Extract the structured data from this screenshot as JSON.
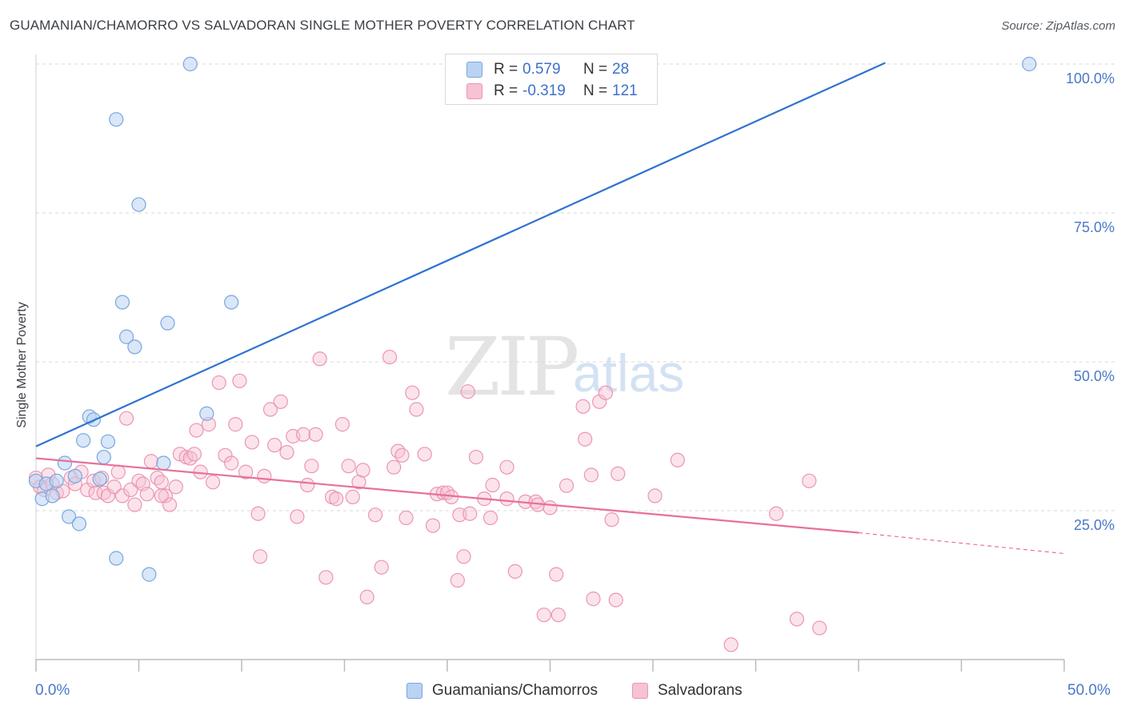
{
  "header": {
    "title": "GUAMANIAN/CHAMORRO VS SALVADORAN SINGLE MOTHER POVERTY CORRELATION CHART",
    "source": "Source: ZipAtlas.com"
  },
  "watermark": {
    "zip": "ZIP",
    "atlas": "atlas"
  },
  "legend": {
    "rows": [
      {
        "r_label": "R =",
        "r_value": "0.579",
        "n_label": "N =",
        "n_value": "28"
      },
      {
        "r_label": "R =",
        "r_value": "-0.319",
        "n_label": "N =",
        "n_value": "121"
      }
    ]
  },
  "bottom_legend": {
    "series1": "Guamanians/Chamorros",
    "series2": "Salvadorans"
  },
  "colors": {
    "blue_fill": "#b9d3f3",
    "blue_stroke": "#7aa6de",
    "blue_line": "#2f72d0",
    "pink_fill": "#f7c2d3",
    "pink_stroke": "#ec95b2",
    "pink_line": "#e8709a",
    "grid": "#d8d8d8"
  },
  "chart_data": {
    "type": "scatter",
    "title": "GUAMANIAN/CHAMORRO VS SALVADORAN SINGLE MOTHER POVERTY CORRELATION CHART",
    "xlabel": "",
    "ylabel": "Single Mother Poverty",
    "xlim": [
      0,
      50
    ],
    "ylim": [
      0,
      102
    ],
    "x_tick_labels": [
      "0.0%",
      "50.0%"
    ],
    "y_tick_labels": [
      "25.0%",
      "50.0%",
      "75.0%",
      "100.0%"
    ],
    "y_ticks": [
      25,
      50,
      75,
      100
    ],
    "grid": true,
    "legend_placement": "top-center",
    "series": [
      {
        "name": "Guamanians/Chamorros",
        "color": "blue",
        "r": 0.579,
        "n": 28,
        "trend": {
          "x0": 0,
          "y0": 35.8,
          "x1": 41.3,
          "y1": 100.2
        },
        "points": [
          [
            0.0,
            30.0
          ],
          [
            0.3,
            27.0
          ],
          [
            0.5,
            29.5
          ],
          [
            0.8,
            27.5
          ],
          [
            1.0,
            30.0
          ],
          [
            1.4,
            33.0
          ],
          [
            1.6,
            24.0
          ],
          [
            1.9,
            30.8
          ],
          [
            2.1,
            22.8
          ],
          [
            2.3,
            36.8
          ],
          [
            2.6,
            40.8
          ],
          [
            2.8,
            40.3
          ],
          [
            3.1,
            30.3
          ],
          [
            3.3,
            34.0
          ],
          [
            3.5,
            36.6
          ],
          [
            3.9,
            17.0
          ],
          [
            3.9,
            90.7
          ],
          [
            4.2,
            60.0
          ],
          [
            4.4,
            54.2
          ],
          [
            4.8,
            52.5
          ],
          [
            5.0,
            76.4
          ],
          [
            5.5,
            14.3
          ],
          [
            6.2,
            33.0
          ],
          [
            6.4,
            56.5
          ],
          [
            7.5,
            100.0
          ],
          [
            8.3,
            41.3
          ],
          [
            9.5,
            60.0
          ],
          [
            48.3,
            100.0
          ]
        ]
      },
      {
        "name": "Salvadorans",
        "color": "pink",
        "r": -0.319,
        "n": 121,
        "trend": {
          "x0": 0,
          "y0": 33.8,
          "x1": 40.0,
          "y1": 21.3,
          "dash_x1": 50.0,
          "dash_y1": 17.8
        },
        "points": [
          [
            0.0,
            30.5
          ],
          [
            0.2,
            29.0
          ],
          [
            0.4,
            28.5
          ],
          [
            0.6,
            31.0
          ],
          [
            0.8,
            29.5
          ],
          [
            1.0,
            28.0
          ],
          [
            1.3,
            28.3
          ],
          [
            1.7,
            30.5
          ],
          [
            1.9,
            29.5
          ],
          [
            2.2,
            31.5
          ],
          [
            2.5,
            28.5
          ],
          [
            2.8,
            30.0
          ],
          [
            2.9,
            28.0
          ],
          [
            3.2,
            30.5
          ],
          [
            3.3,
            28.0
          ],
          [
            3.5,
            27.5
          ],
          [
            3.8,
            29.0
          ],
          [
            4.0,
            31.5
          ],
          [
            4.2,
            27.5
          ],
          [
            4.4,
            40.5
          ],
          [
            4.6,
            28.5
          ],
          [
            4.8,
            26.0
          ],
          [
            5.0,
            30.0
          ],
          [
            5.2,
            29.5
          ],
          [
            5.4,
            27.8
          ],
          [
            5.6,
            33.3
          ],
          [
            5.9,
            30.5
          ],
          [
            6.1,
            29.8
          ],
          [
            6.3,
            27.5
          ],
          [
            6.5,
            26.0
          ],
          [
            6.8,
            29.0
          ],
          [
            7.0,
            34.5
          ],
          [
            7.3,
            34.0
          ],
          [
            7.5,
            33.8
          ],
          [
            7.7,
            34.5
          ],
          [
            7.8,
            38.5
          ],
          [
            8.0,
            31.5
          ],
          [
            8.4,
            39.5
          ],
          [
            8.6,
            29.8
          ],
          [
            8.9,
            46.5
          ],
          [
            9.2,
            34.3
          ],
          [
            9.5,
            33.0
          ],
          [
            9.7,
            39.5
          ],
          [
            9.9,
            46.8
          ],
          [
            10.2,
            31.5
          ],
          [
            10.5,
            36.5
          ],
          [
            10.8,
            24.5
          ],
          [
            10.9,
            17.3
          ],
          [
            11.1,
            30.8
          ],
          [
            11.4,
            42.0
          ],
          [
            11.6,
            36.0
          ],
          [
            11.9,
            43.3
          ],
          [
            12.2,
            34.8
          ],
          [
            12.5,
            37.5
          ],
          [
            12.7,
            24.0
          ],
          [
            13.0,
            37.8
          ],
          [
            13.2,
            29.3
          ],
          [
            13.4,
            32.5
          ],
          [
            13.6,
            37.8
          ],
          [
            13.8,
            50.5
          ],
          [
            14.1,
            13.8
          ],
          [
            14.4,
            27.3
          ],
          [
            14.6,
            27.0
          ],
          [
            14.9,
            39.5
          ],
          [
            15.2,
            32.5
          ],
          [
            15.4,
            27.3
          ],
          [
            15.7,
            29.8
          ],
          [
            15.9,
            31.8
          ],
          [
            16.1,
            10.5
          ],
          [
            16.5,
            24.3
          ],
          [
            16.8,
            15.5
          ],
          [
            17.2,
            50.8
          ],
          [
            17.4,
            32.3
          ],
          [
            17.6,
            35.0
          ],
          [
            17.8,
            34.3
          ],
          [
            18.0,
            23.8
          ],
          [
            18.3,
            44.8
          ],
          [
            18.5,
            42.0
          ],
          [
            18.9,
            34.5
          ],
          [
            19.3,
            22.5
          ],
          [
            19.5,
            27.8
          ],
          [
            19.8,
            28.0
          ],
          [
            20.0,
            28.0
          ],
          [
            20.2,
            27.3
          ],
          [
            20.5,
            13.3
          ],
          [
            20.6,
            24.3
          ],
          [
            20.8,
            17.3
          ],
          [
            21.0,
            45.0
          ],
          [
            21.1,
            24.5
          ],
          [
            21.4,
            34.0
          ],
          [
            21.8,
            27.0
          ],
          [
            22.1,
            23.8
          ],
          [
            22.2,
            29.3
          ],
          [
            22.9,
            27.0
          ],
          [
            22.9,
            32.3
          ],
          [
            23.3,
            14.8
          ],
          [
            23.8,
            26.5
          ],
          [
            24.3,
            26.5
          ],
          [
            24.4,
            26.0
          ],
          [
            24.7,
            7.5
          ],
          [
            25.0,
            25.5
          ],
          [
            25.3,
            14.3
          ],
          [
            25.4,
            7.5
          ],
          [
            25.8,
            29.2
          ],
          [
            26.6,
            42.5
          ],
          [
            26.7,
            37.0
          ],
          [
            27.0,
            31.0
          ],
          [
            27.1,
            10.2
          ],
          [
            27.4,
            43.3
          ],
          [
            27.7,
            44.8
          ],
          [
            28.0,
            23.5
          ],
          [
            28.2,
            10.0
          ],
          [
            28.3,
            31.2
          ],
          [
            30.1,
            27.5
          ],
          [
            31.2,
            33.5
          ],
          [
            33.8,
            2.5
          ],
          [
            36.0,
            24.5
          ],
          [
            37.0,
            6.8
          ],
          [
            37.6,
            30.0
          ],
          [
            38.1,
            5.3
          ],
          [
            6.1,
            27.5
          ]
        ]
      }
    ]
  }
}
